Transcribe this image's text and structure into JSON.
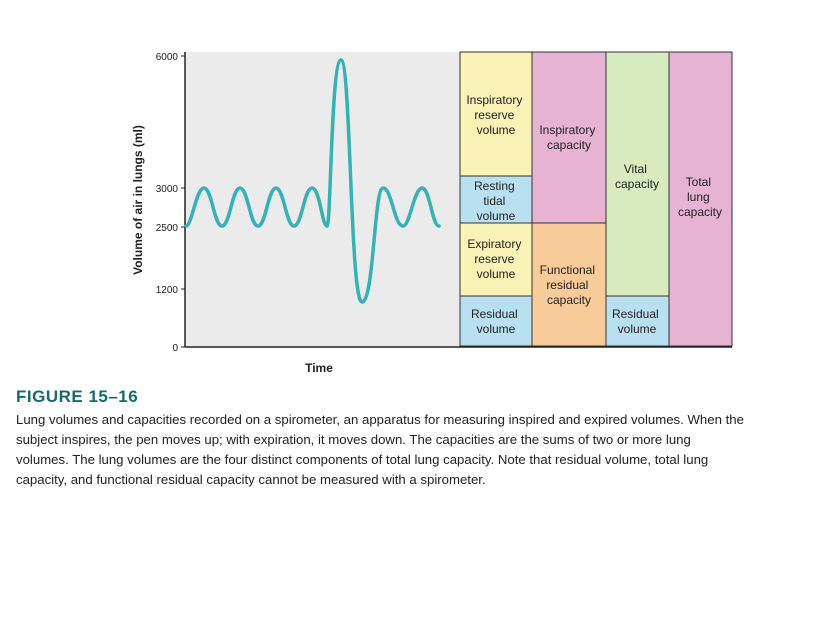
{
  "figure": {
    "y_axis_label": "Volume of air in lungs (ml)",
    "x_axis_label": "Time",
    "y_ticks": [
      "0",
      "1200",
      "2500",
      "3000",
      "6000"
    ],
    "trace_color": "#33b3b3",
    "regions": {
      "inspiratory_reserve_volume": [
        "Inspiratory",
        "reserve",
        "volume"
      ],
      "resting_tidal_volume": [
        "Resting",
        "tidal",
        "volume"
      ],
      "expiratory_reserve_volume": [
        "Expiratory",
        "reserve",
        "volume"
      ],
      "residual_volume_left": [
        "Residual",
        "volume"
      ],
      "inspiratory_capacity": [
        "Inspiratory",
        "capacity"
      ],
      "functional_residual_capacity": [
        "Functional",
        "residual",
        "capacity"
      ],
      "vital_capacity": [
        "Vital",
        "capacity"
      ],
      "residual_volume_right": [
        "Residual",
        "volume"
      ],
      "total_lung_capacity": [
        "Total",
        "lung",
        "capacity"
      ]
    },
    "colors": {
      "plot_bg": "#ebebeb",
      "yellow": "#fbf2b6",
      "blue": "#b9e0f0",
      "pink": "#e6b3d3",
      "orange": "#f8cc98",
      "green": "#d8ebbf"
    }
  },
  "caption": {
    "title": "FIGURE 15–16",
    "lines": [
      "Lung volumes and capacities recorded on a spirometer, an apparatus for measuring inspired and expired volumes. When the",
      "subject inspires, the pen moves up; with expiration, it moves down. The capacities are the sums of two or more lung",
      "volumes. The lung volumes are the four distinct components of total lung capacity. Note that residual volume, total lung",
      "capacity, and functional residual capacity cannot be measured with a spirometer."
    ]
  }
}
